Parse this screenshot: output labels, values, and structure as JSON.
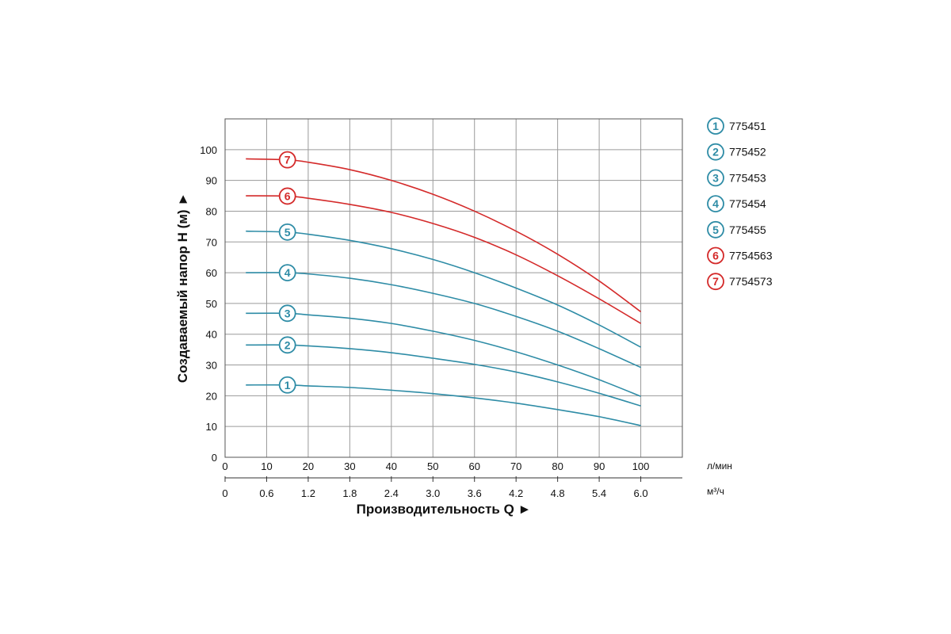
{
  "chart_data": {
    "type": "line",
    "xlabel": "Производительность Q ►",
    "ylabel": "Создаваемый напор H (м) ►",
    "x_unit": "л/мин",
    "x2_unit": "м³/ч",
    "xlim": [
      0,
      110
    ],
    "ylim": [
      0,
      110
    ],
    "x_ticks": [
      0,
      10,
      20,
      30,
      40,
      50,
      60,
      70,
      80,
      90,
      100
    ],
    "x_tick_labels": [
      "0",
      "10",
      "20",
      "30",
      "40",
      "50",
      "60",
      "70",
      "80",
      "90",
      "100"
    ],
    "x2_tick_labels": [
      "0",
      "0.6",
      "1.2",
      "1.8",
      "2.4",
      "3.0",
      "3.6",
      "4.2",
      "4.8",
      "5.4",
      "6.0"
    ],
    "y_ticks": [
      0,
      10,
      20,
      30,
      40,
      50,
      60,
      70,
      80,
      90,
      100
    ],
    "y_tick_labels": [
      "0",
      "10",
      "20",
      "30",
      "40",
      "50",
      "60",
      "70",
      "80",
      "90",
      "100"
    ],
    "grid": true,
    "legend_position": "right",
    "colors": {
      "teal": "#2e8ca6",
      "red": "#d42a2a"
    },
    "series": [
      {
        "id": "1",
        "name": "775451",
        "color": "#2e8ca6",
        "x": [
          5,
          15,
          20,
          30,
          40,
          50,
          60,
          70,
          80,
          90,
          100
        ],
        "y": [
          23.5,
          23.5,
          23.2,
          22.7,
          21.8,
          20.7,
          19.3,
          17.6,
          15.5,
          13.2,
          10.3
        ]
      },
      {
        "id": "2",
        "name": "775452",
        "color": "#2e8ca6",
        "x": [
          5,
          15,
          20,
          30,
          40,
          50,
          60,
          70,
          80,
          90,
          100
        ],
        "y": [
          36.5,
          36.5,
          36.2,
          35.3,
          34.0,
          32.2,
          30.2,
          27.7,
          24.5,
          20.8,
          16.7
        ]
      },
      {
        "id": "3",
        "name": "775453",
        "color": "#2e8ca6",
        "x": [
          5,
          15,
          20,
          30,
          40,
          50,
          60,
          70,
          80,
          90,
          100
        ],
        "y": [
          46.8,
          46.8,
          46.3,
          45.2,
          43.5,
          41.0,
          38.0,
          34.3,
          30.0,
          25.2,
          19.8
        ]
      },
      {
        "id": "4",
        "name": "775454",
        "color": "#2e8ca6",
        "x": [
          5,
          15,
          20,
          30,
          40,
          50,
          60,
          70,
          80,
          90,
          100
        ],
        "y": [
          60.0,
          60.0,
          59.6,
          58.2,
          56.1,
          53.3,
          50.0,
          45.8,
          41.0,
          35.3,
          29.2
        ]
      },
      {
        "id": "5",
        "name": "775455",
        "color": "#2e8ca6",
        "x": [
          5,
          15,
          20,
          30,
          40,
          50,
          60,
          70,
          80,
          90,
          100
        ],
        "y": [
          73.5,
          73.2,
          72.5,
          70.5,
          67.8,
          64.3,
          60.0,
          55.0,
          49.5,
          43.0,
          35.8
        ]
      },
      {
        "id": "6",
        "name": "7754563",
        "color": "#d42a2a",
        "x": [
          5,
          15,
          20,
          30,
          40,
          50,
          60,
          70,
          80,
          90,
          100
        ],
        "y": [
          85.0,
          84.9,
          84.2,
          82.2,
          79.6,
          76.0,
          71.5,
          65.8,
          59.0,
          51.5,
          43.5
        ]
      },
      {
        "id": "7",
        "name": "7754573",
        "color": "#d42a2a",
        "x": [
          5,
          15,
          20,
          30,
          40,
          50,
          60,
          70,
          80,
          90,
          100
        ],
        "y": [
          97.0,
          96.7,
          95.9,
          93.5,
          90.0,
          85.5,
          80.0,
          73.5,
          66.0,
          57.3,
          47.3
        ]
      }
    ],
    "curve_label_x": 15
  }
}
